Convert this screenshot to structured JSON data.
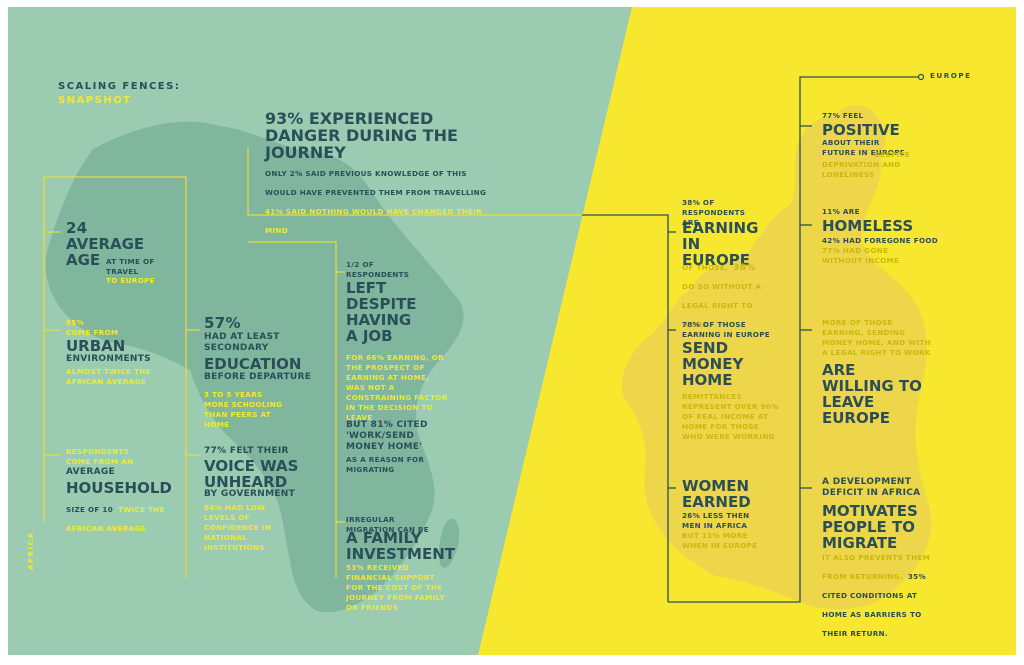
{
  "header": {
    "title": "SCALING FENCES:",
    "subtitle": "SNAPSHOT"
  },
  "labels": {
    "africa": "AFRICA",
    "europe": "EUROPE"
  },
  "colors": {
    "africa_bg": "#9bcbb0",
    "europe_bg": "#f7e82f",
    "dark_text": "#2a4f58",
    "yellow_text": "#f3ea2c",
    "map": "#80b59e",
    "map_europe": "#eed64a"
  },
  "africa": {
    "danger": {
      "headline": "93% EXPERIENCED DANGER DURING THE JOURNEY",
      "text": "ONLY 2% SAID PREVIOUS KNOWLEDGE OF THIS WOULD HAVE PREVENTED THEM FROM TRAVELLING",
      "highlight": "41% SAID NOTHING WOULD HAVE CHANGED THEIR MIND"
    },
    "age": {
      "value": "24",
      "headline": "AVERAGE AGE",
      "text": "AT TIME OF TRAVEL",
      "highlight": "TO EUROPE"
    },
    "urban": {
      "value": "85%",
      "pre": "COME FROM",
      "headline": "URBAN",
      "text": "ENVIRONMENTS",
      "highlight": "ALMOST TWICE THE AFRICAN AVERAGE"
    },
    "household": {
      "intro": "RESPONDENTS COME FROM AN",
      "pre": "AVERAGE",
      "headline": "HOUSEHOLD",
      "text": "SIZE OF 10",
      "highlight": "TWICE THE AFRICAN AVERAGE"
    },
    "education": {
      "value": "57%",
      "pre": "HAD AT LEAST SECONDARY",
      "headline": "EDUCATION",
      "text": "BEFORE DEPARTURE",
      "highlight": "3 TO 5 YEARS MORE SCHOOLING THAN PEERS AT HOME"
    },
    "voice": {
      "pre": "77% FELT THEIR",
      "headline": "VOICE WAS UNHEARD",
      "text": "BY GOVERNMENT",
      "highlight": "84% HAD LOW LEVELS OF CONFIDENCE IN NATIONAL INSTITUTIONS"
    },
    "job": {
      "pre": "1/2 OF RESPONDENTS",
      "headline": "LEFT DESPITE HAVING A JOB",
      "highlight": "FOR 66% EARNING, OR THE PROSPECT OF EARNING AT HOME, WAS NOT A CONSTRAINING FACTOR IN THE DECISION TO LEAVE",
      "text_big": "BUT 81% CITED 'WORK/SEND MONEY HOME'",
      "text": "AS A REASON FOR MIGRATING"
    },
    "investment": {
      "pre": "IRREGULAR MIGRATION CAN BE",
      "headline": "A FAMILY INVESTMENT",
      "highlight": "53% RECEIVED FINANCIAL SUPPORT FOR THE COST OF THE JOURNEY FROM FAMILY OR FRIENDS"
    }
  },
  "europe": {
    "earning": {
      "pre": "38% OF RESPONDENTS ARE",
      "headline": "EARNING IN EUROPE",
      "highlight_a": "OF THOSE,",
      "highlight_num": "38%",
      "highlight_b": "DO SO WITHOUT A LEGAL RIGHT TO WORK"
    },
    "send": {
      "pre": "78% OF THOSE EARNING IN EUROPE",
      "headline": "SEND MONEY HOME",
      "highlight": "REMITTANCES REPRESENT OVER 90% OF REAL INCOME AT HOME FOR THOSE WHO WERE WORKING"
    },
    "women": {
      "headline": "WOMEN EARNED",
      "text": "26% LESS THEN MEN IN AFRICA",
      "highlight": "BUT 11% MORE WHEN IN EUROPE"
    },
    "positive": {
      "pre": "77% FEEL",
      "headline": "POSITIVE",
      "text": "ABOUT THEIR FUTURE IN EUROPE",
      "highlight": "DESPITE DEPRIVATION AND LONELINESS"
    },
    "homeless": {
      "pre": "11% ARE",
      "headline": "HOMELESS",
      "text": "42% HAD FOREGONE FOOD",
      "highlight": "77% HAD GONE WITHOUT INCOME"
    },
    "willing": {
      "highlight": "MORE OF THOSE EARNING, SENDING MONEY HOME, AND WITH A LEGAL RIGHT TO WORK",
      "headline": "ARE WILLING TO LEAVE EUROPE"
    },
    "deficit": {
      "pre": "A DEVELOPMENT DEFICIT IN AFRICA",
      "headline": "MOTIVATES PEOPLE TO MIGRATE",
      "highlight": "IT ALSO PREVENTS THEM FROM RETURNING.",
      "text": "35% CITED CONDITIONS AT HOME AS BARRIERS TO THEIR RETURN."
    }
  }
}
